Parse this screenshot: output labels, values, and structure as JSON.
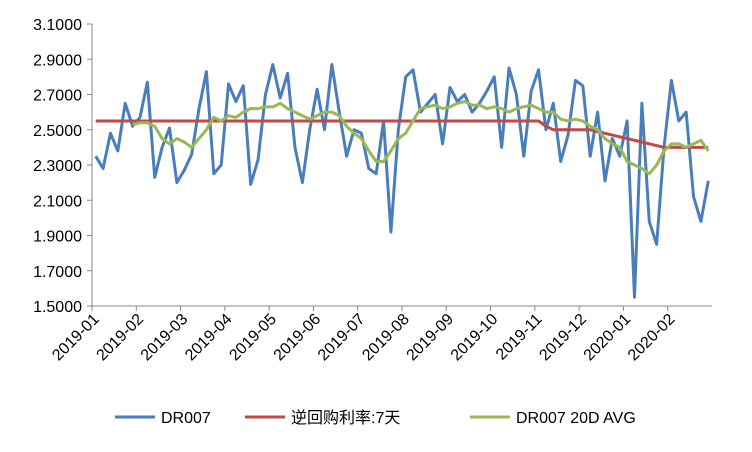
{
  "chart_data": {
    "type": "line",
    "categories": [
      "2019-01",
      null,
      null,
      null,
      null,
      null,
      "2019-02",
      null,
      null,
      null,
      null,
      null,
      "2019-03",
      null,
      null,
      null,
      null,
      null,
      "2019-04",
      null,
      null,
      null,
      null,
      null,
      "2019-05",
      null,
      null,
      null,
      null,
      null,
      "2019-06",
      null,
      null,
      null,
      null,
      null,
      "2019-07",
      null,
      null,
      null,
      null,
      null,
      "2019-08",
      null,
      null,
      null,
      null,
      null,
      "2019-09",
      null,
      null,
      null,
      null,
      null,
      "2019-10",
      null,
      null,
      null,
      null,
      null,
      "2019-11",
      null,
      null,
      null,
      null,
      null,
      "2019-12",
      null,
      null,
      null,
      null,
      null,
      "2020-01",
      null,
      null,
      null,
      null,
      null,
      "2020-02",
      null,
      null,
      null,
      null,
      null
    ],
    "series": [
      {
        "name": "DR007",
        "color": "#4a7ebb",
        "values": [
          2.35,
          2.28,
          2.48,
          2.38,
          2.65,
          2.52,
          2.57,
          2.77,
          2.23,
          2.4,
          2.51,
          2.2,
          2.27,
          2.36,
          2.62,
          2.83,
          2.25,
          2.3,
          2.76,
          2.66,
          2.75,
          2.19,
          2.33,
          2.7,
          2.87,
          2.68,
          2.82,
          2.4,
          2.2,
          2.5,
          2.73,
          2.5,
          2.87,
          2.6,
          2.35,
          2.5,
          2.48,
          2.28,
          2.25,
          2.55,
          1.92,
          2.5,
          2.8,
          2.84,
          2.6,
          2.65,
          2.7,
          2.42,
          2.74,
          2.66,
          2.7,
          2.6,
          2.65,
          2.72,
          2.8,
          2.4,
          2.85,
          2.7,
          2.35,
          2.72,
          2.84,
          2.5,
          2.65,
          2.32,
          2.47,
          2.78,
          2.75,
          2.35,
          2.6,
          2.21,
          2.45,
          2.35,
          2.55,
          1.55,
          2.65,
          1.98,
          1.85,
          2.4,
          2.78,
          2.55,
          2.6,
          2.12,
          1.98,
          2.21
        ]
      },
      {
        "name": "逆回购利率:7天",
        "color": "#be4b48",
        "values": [
          2.55,
          2.55,
          2.55,
          2.55,
          2.55,
          2.55,
          2.55,
          2.55,
          2.55,
          2.55,
          2.55,
          2.55,
          2.55,
          2.55,
          2.55,
          2.55,
          2.55,
          2.55,
          2.55,
          2.55,
          2.55,
          2.55,
          2.55,
          2.55,
          2.55,
          2.55,
          2.55,
          2.55,
          2.55,
          2.55,
          2.55,
          2.55,
          2.55,
          2.55,
          2.55,
          2.55,
          2.55,
          2.55,
          2.55,
          2.55,
          2.55,
          2.55,
          2.55,
          2.55,
          2.55,
          2.55,
          2.55,
          2.55,
          2.55,
          2.55,
          2.55,
          2.55,
          2.55,
          2.55,
          2.55,
          2.55,
          2.55,
          2.55,
          2.55,
          2.55,
          2.55,
          2.52,
          2.5,
          2.5,
          2.5,
          2.5,
          2.5,
          2.5,
          2.49,
          2.48,
          2.47,
          2.46,
          2.45,
          2.44,
          2.43,
          2.42,
          2.41,
          2.4,
          2.4,
          2.4,
          2.4,
          2.4,
          2.4,
          2.4
        ]
      },
      {
        "name": "DR007 20D AVG",
        "color": "#98b954",
        "values": [
          null,
          null,
          null,
          null,
          null,
          2.53,
          2.54,
          2.54,
          2.52,
          2.45,
          2.42,
          2.45,
          2.43,
          2.4,
          2.45,
          2.5,
          2.57,
          2.55,
          2.58,
          2.57,
          2.6,
          2.62,
          2.62,
          2.63,
          2.63,
          2.65,
          2.62,
          2.6,
          2.58,
          2.56,
          2.58,
          2.6,
          2.6,
          2.58,
          2.52,
          2.48,
          2.45,
          2.38,
          2.32,
          2.32,
          2.38,
          2.45,
          2.48,
          2.55,
          2.62,
          2.63,
          2.64,
          2.62,
          2.63,
          2.65,
          2.66,
          2.64,
          2.64,
          2.62,
          2.63,
          2.62,
          2.6,
          2.62,
          2.63,
          2.64,
          2.62,
          2.6,
          2.6,
          2.56,
          2.55,
          2.56,
          2.55,
          2.52,
          2.5,
          2.45,
          2.42,
          2.4,
          2.32,
          2.3,
          2.28,
          2.25,
          2.3,
          2.38,
          2.42,
          2.42,
          2.4,
          2.42,
          2.44,
          2.38
        ]
      }
    ],
    "ylim": [
      1.5,
      3.1
    ],
    "yticks": [
      {
        "value": 1.5,
        "label": "1.5000"
      },
      {
        "value": 1.7,
        "label": "1.7000"
      },
      {
        "value": 1.9,
        "label": "1.9000"
      },
      {
        "value": 2.1,
        "label": "2.1000"
      },
      {
        "value": 2.3,
        "label": "2.3000"
      },
      {
        "value": 2.5,
        "label": "2.5000"
      },
      {
        "value": 2.7,
        "label": "2.7000"
      },
      {
        "value": 2.9,
        "label": "2.9000"
      },
      {
        "value": 3.1,
        "label": "3.1000"
      }
    ],
    "grid": false,
    "legend": "bottom"
  }
}
